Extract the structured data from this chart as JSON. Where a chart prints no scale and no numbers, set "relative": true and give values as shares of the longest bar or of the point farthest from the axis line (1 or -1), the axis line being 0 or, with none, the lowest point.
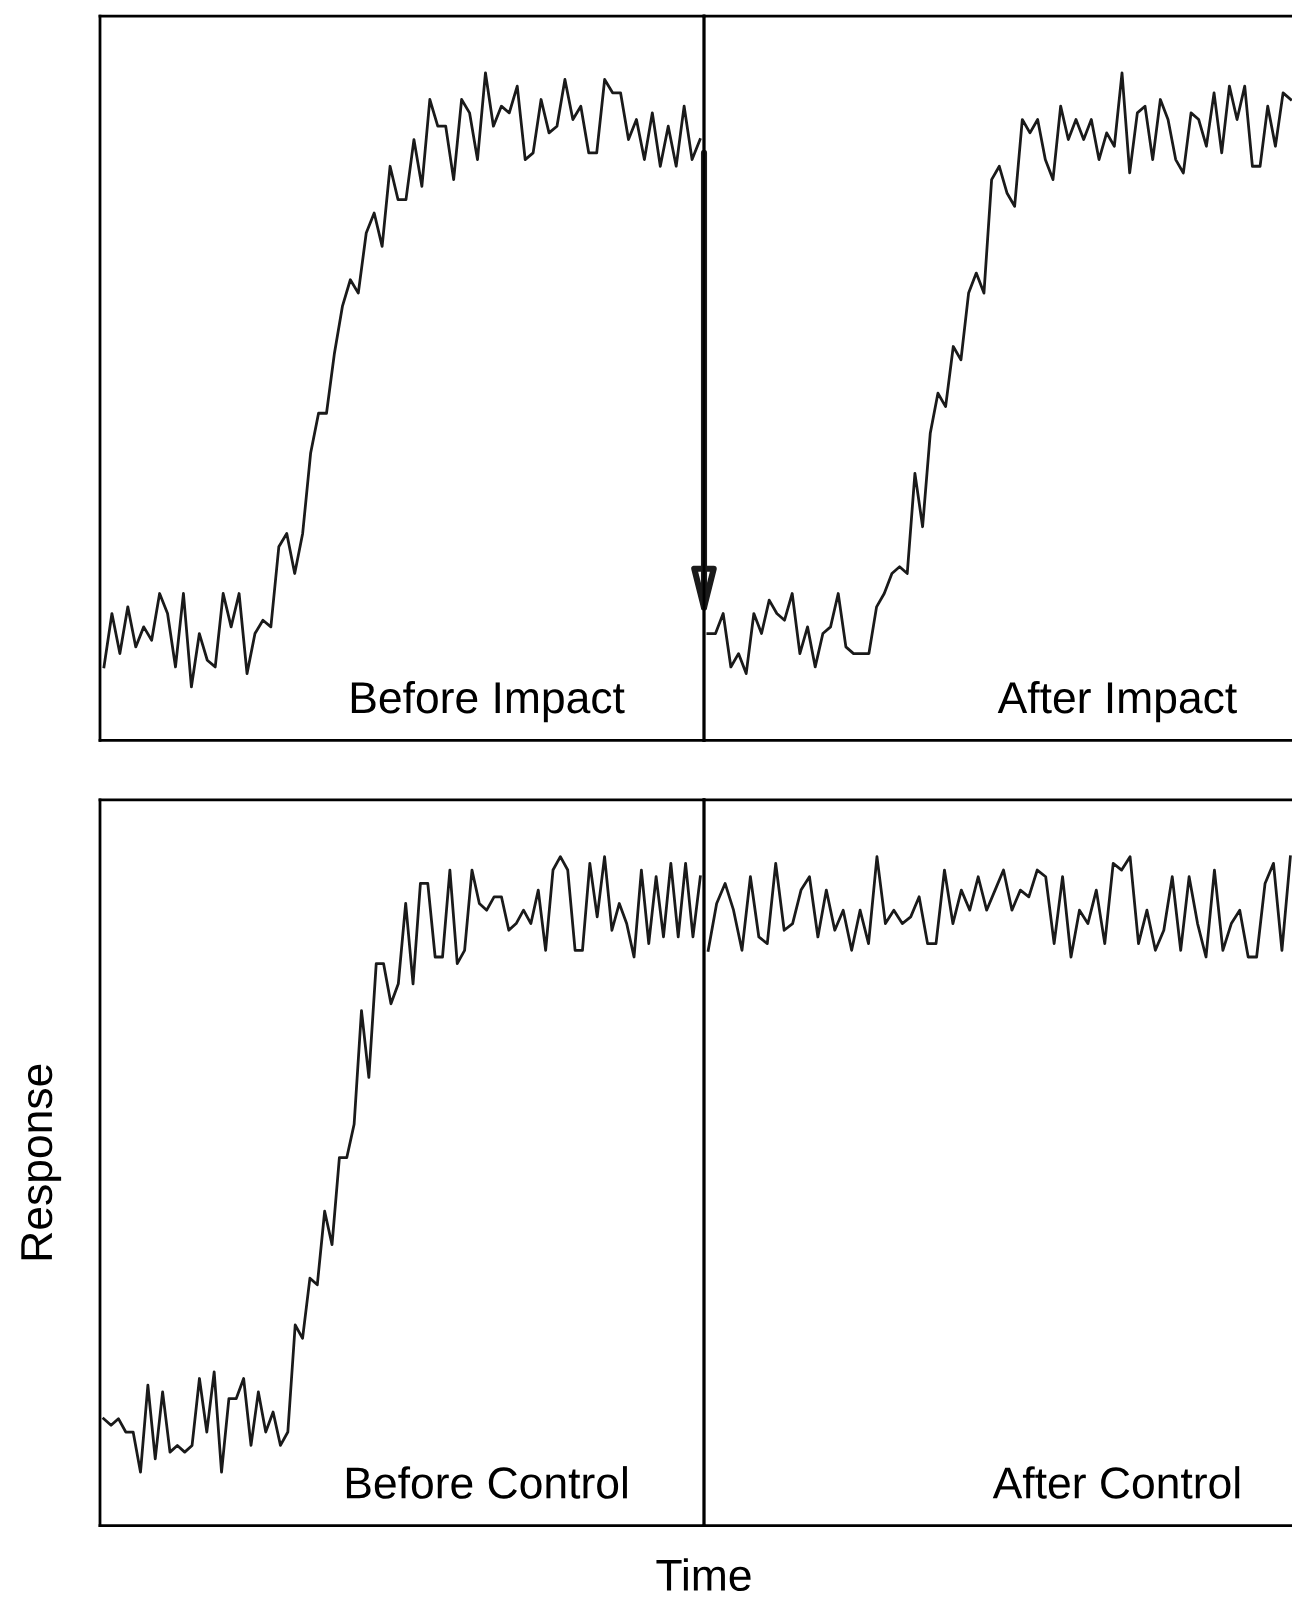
{
  "chart_data": [
    {
      "type": "line",
      "relative": true,
      "marker": "none",
      "line_style": "solid",
      "annotations": [
        "Before Impact"
      ],
      "categories": [
        null,
        null,
        null,
        null,
        null,
        null,
        null,
        null,
        null,
        null,
        null,
        null,
        null,
        null,
        null,
        null,
        null,
        null,
        null,
        null,
        null,
        null,
        null,
        null,
        null,
        null,
        null,
        null,
        null,
        null,
        null,
        null,
        null,
        null,
        null,
        null,
        null,
        null,
        null,
        null,
        null,
        null,
        null,
        null,
        null,
        null,
        null,
        null,
        null,
        null,
        null,
        null,
        null,
        null,
        null,
        null,
        null,
        null,
        null,
        null,
        null,
        null,
        null,
        null,
        null,
        null,
        null,
        null,
        null,
        null,
        null,
        null,
        null,
        null,
        null,
        null
      ],
      "series": [
        {
          "color": "#1a1a1a",
          "values": [
            0.11,
            0.19,
            0.13,
            0.2,
            0.14,
            0.17,
            0.15,
            0.22,
            0.19,
            0.11,
            0.22,
            0.08,
            0.16,
            0.12,
            0.11,
            0.22,
            0.17,
            0.22,
            0.1,
            0.16,
            0.18,
            0.17,
            0.29,
            0.31,
            0.25,
            0.31,
            0.43,
            0.49,
            0.49,
            0.58,
            0.65,
            0.69,
            0.67,
            0.76,
            0.79,
            0.74,
            0.86,
            0.81,
            0.81,
            0.9,
            0.83,
            0.96,
            0.92,
            0.92,
            0.84,
            0.96,
            0.94,
            0.87,
            1,
            0.92,
            0.95,
            0.94,
            0.98,
            0.87,
            0.88,
            0.96,
            0.91,
            0.92,
            0.99,
            0.93,
            0.95,
            0.88,
            0.88,
            0.99,
            0.97,
            0.97,
            0.9,
            0.93,
            0.87,
            0.94,
            0.86,
            0.92,
            0.86,
            0.95,
            0.87,
            0.9
          ]
        }
      ]
    },
    {
      "type": "line",
      "relative": true,
      "marker": "none",
      "line_style": "solid",
      "annotations": [
        "After Impact"
      ],
      "categories": [
        null,
        null,
        null,
        null,
        null,
        null,
        null,
        null,
        null,
        null,
        null,
        null,
        null,
        null,
        null,
        null,
        null,
        null,
        null,
        null,
        null,
        null,
        null,
        null,
        null,
        null,
        null,
        null,
        null,
        null,
        null,
        null,
        null,
        null,
        null,
        null,
        null,
        null,
        null,
        null,
        null,
        null,
        null,
        null,
        null,
        null,
        null,
        null,
        null,
        null,
        null,
        null,
        null,
        null,
        null,
        null,
        null,
        null,
        null,
        null,
        null,
        null,
        null,
        null,
        null,
        null,
        null,
        null,
        null,
        null,
        null,
        null,
        null,
        null,
        null,
        null,
        null
      ],
      "series": [
        {
          "color": "#1a1a1a",
          "values": [
            0.16,
            0.16,
            0.19,
            0.11,
            0.13,
            0.1,
            0.19,
            0.16,
            0.21,
            0.19,
            0.18,
            0.22,
            0.13,
            0.17,
            0.11,
            0.16,
            0.17,
            0.22,
            0.14,
            0.13,
            0.13,
            0.13,
            0.2,
            0.22,
            0.25,
            0.26,
            0.25,
            0.4,
            0.32,
            0.46,
            0.52,
            0.5,
            0.59,
            0.57,
            0.67,
            0.7,
            0.67,
            0.84,
            0.86,
            0.82,
            0.8,
            0.93,
            0.91,
            0.93,
            0.87,
            0.84,
            0.95,
            0.9,
            0.93,
            0.9,
            0.93,
            0.87,
            0.91,
            0.89,
            1,
            0.85,
            0.94,
            0.95,
            0.87,
            0.96,
            0.93,
            0.87,
            0.85,
            0.94,
            0.93,
            0.89,
            0.97,
            0.88,
            0.98,
            0.93,
            0.98,
            0.86,
            0.86,
            0.95,
            0.89,
            0.97,
            0.96
          ]
        }
      ]
    },
    {
      "type": "line",
      "relative": true,
      "marker": "none",
      "line_style": "solid",
      "xlabel": "Time",
      "ylabel": "Response",
      "annotations": [
        "Before Control"
      ],
      "categories": [
        null,
        null,
        null,
        null,
        null,
        null,
        null,
        null,
        null,
        null,
        null,
        null,
        null,
        null,
        null,
        null,
        null,
        null,
        null,
        null,
        null,
        null,
        null,
        null,
        null,
        null,
        null,
        null,
        null,
        null,
        null,
        null,
        null,
        null,
        null,
        null,
        null,
        null,
        null,
        null,
        null,
        null,
        null,
        null,
        null,
        null,
        null,
        null,
        null,
        null,
        null,
        null,
        null,
        null,
        null,
        null,
        null,
        null,
        null,
        null,
        null,
        null,
        null,
        null,
        null,
        null,
        null,
        null,
        null,
        null,
        null,
        null,
        null,
        null,
        null,
        null,
        null,
        null,
        null,
        null,
        null,
        null
      ],
      "series": [
        {
          "color": "#1a1a1a",
          "values": [
            0.16,
            0.15,
            0.16,
            0.14,
            0.14,
            0.08,
            0.21,
            0.1,
            0.2,
            0.11,
            0.12,
            0.11,
            0.12,
            0.22,
            0.14,
            0.23,
            0.08,
            0.19,
            0.19,
            0.22,
            0.12,
            0.2,
            0.14,
            0.17,
            0.12,
            0.14,
            0.3,
            0.28,
            0.37,
            0.36,
            0.47,
            0.42,
            0.55,
            0.55,
            0.6,
            0.77,
            0.67,
            0.84,
            0.84,
            0.78,
            0.81,
            0.93,
            0.81,
            0.96,
            0.96,
            0.85,
            0.85,
            0.98,
            0.84,
            0.86,
            0.98,
            0.93,
            0.92,
            0.94,
            0.94,
            0.89,
            0.9,
            0.92,
            0.9,
            0.95,
            0.86,
            0.98,
            1,
            0.98,
            0.86,
            0.86,
            0.99,
            0.91,
            1,
            0.89,
            0.93,
            0.9,
            0.85,
            0.98,
            0.87,
            0.97,
            0.88,
            0.99,
            0.88,
            0.99,
            0.88,
            0.97
          ]
        }
      ]
    },
    {
      "type": "line",
      "relative": true,
      "marker": "none",
      "line_style": "solid",
      "annotations": [
        "After Control"
      ],
      "categories": [
        null,
        null,
        null,
        null,
        null,
        null,
        null,
        null,
        null,
        null,
        null,
        null,
        null,
        null,
        null,
        null,
        null,
        null,
        null,
        null,
        null,
        null,
        null,
        null,
        null,
        null,
        null,
        null,
        null,
        null,
        null,
        null,
        null,
        null,
        null,
        null,
        null,
        null,
        null,
        null,
        null,
        null,
        null,
        null,
        null,
        null,
        null,
        null,
        null,
        null,
        null,
        null,
        null,
        null,
        null,
        null,
        null,
        null,
        null,
        null,
        null,
        null,
        null,
        null,
        null,
        null,
        null,
        null,
        null,
        null
      ],
      "series": [
        {
          "color": "#1a1a1a",
          "values": [
            0.86,
            0.93,
            0.96,
            0.92,
            0.86,
            0.97,
            0.88,
            0.87,
            0.99,
            0.89,
            0.9,
            0.95,
            0.97,
            0.88,
            0.95,
            0.89,
            0.92,
            0.86,
            0.92,
            0.87,
            1,
            0.9,
            0.92,
            0.9,
            0.91,
            0.94,
            0.87,
            0.87,
            0.98,
            0.9,
            0.95,
            0.92,
            0.97,
            0.92,
            0.95,
            0.98,
            0.92,
            0.95,
            0.94,
            0.98,
            0.97,
            0.87,
            0.97,
            0.85,
            0.92,
            0.9,
            0.95,
            0.87,
            0.99,
            0.98,
            1,
            0.87,
            0.92,
            0.86,
            0.89,
            0.97,
            0.86,
            0.97,
            0.9,
            0.85,
            0.98,
            0.86,
            0.9,
            0.92,
            0.85,
            0.85,
            0.96,
            0.99,
            0.86,
            1
          ]
        }
      ]
    }
  ]
}
